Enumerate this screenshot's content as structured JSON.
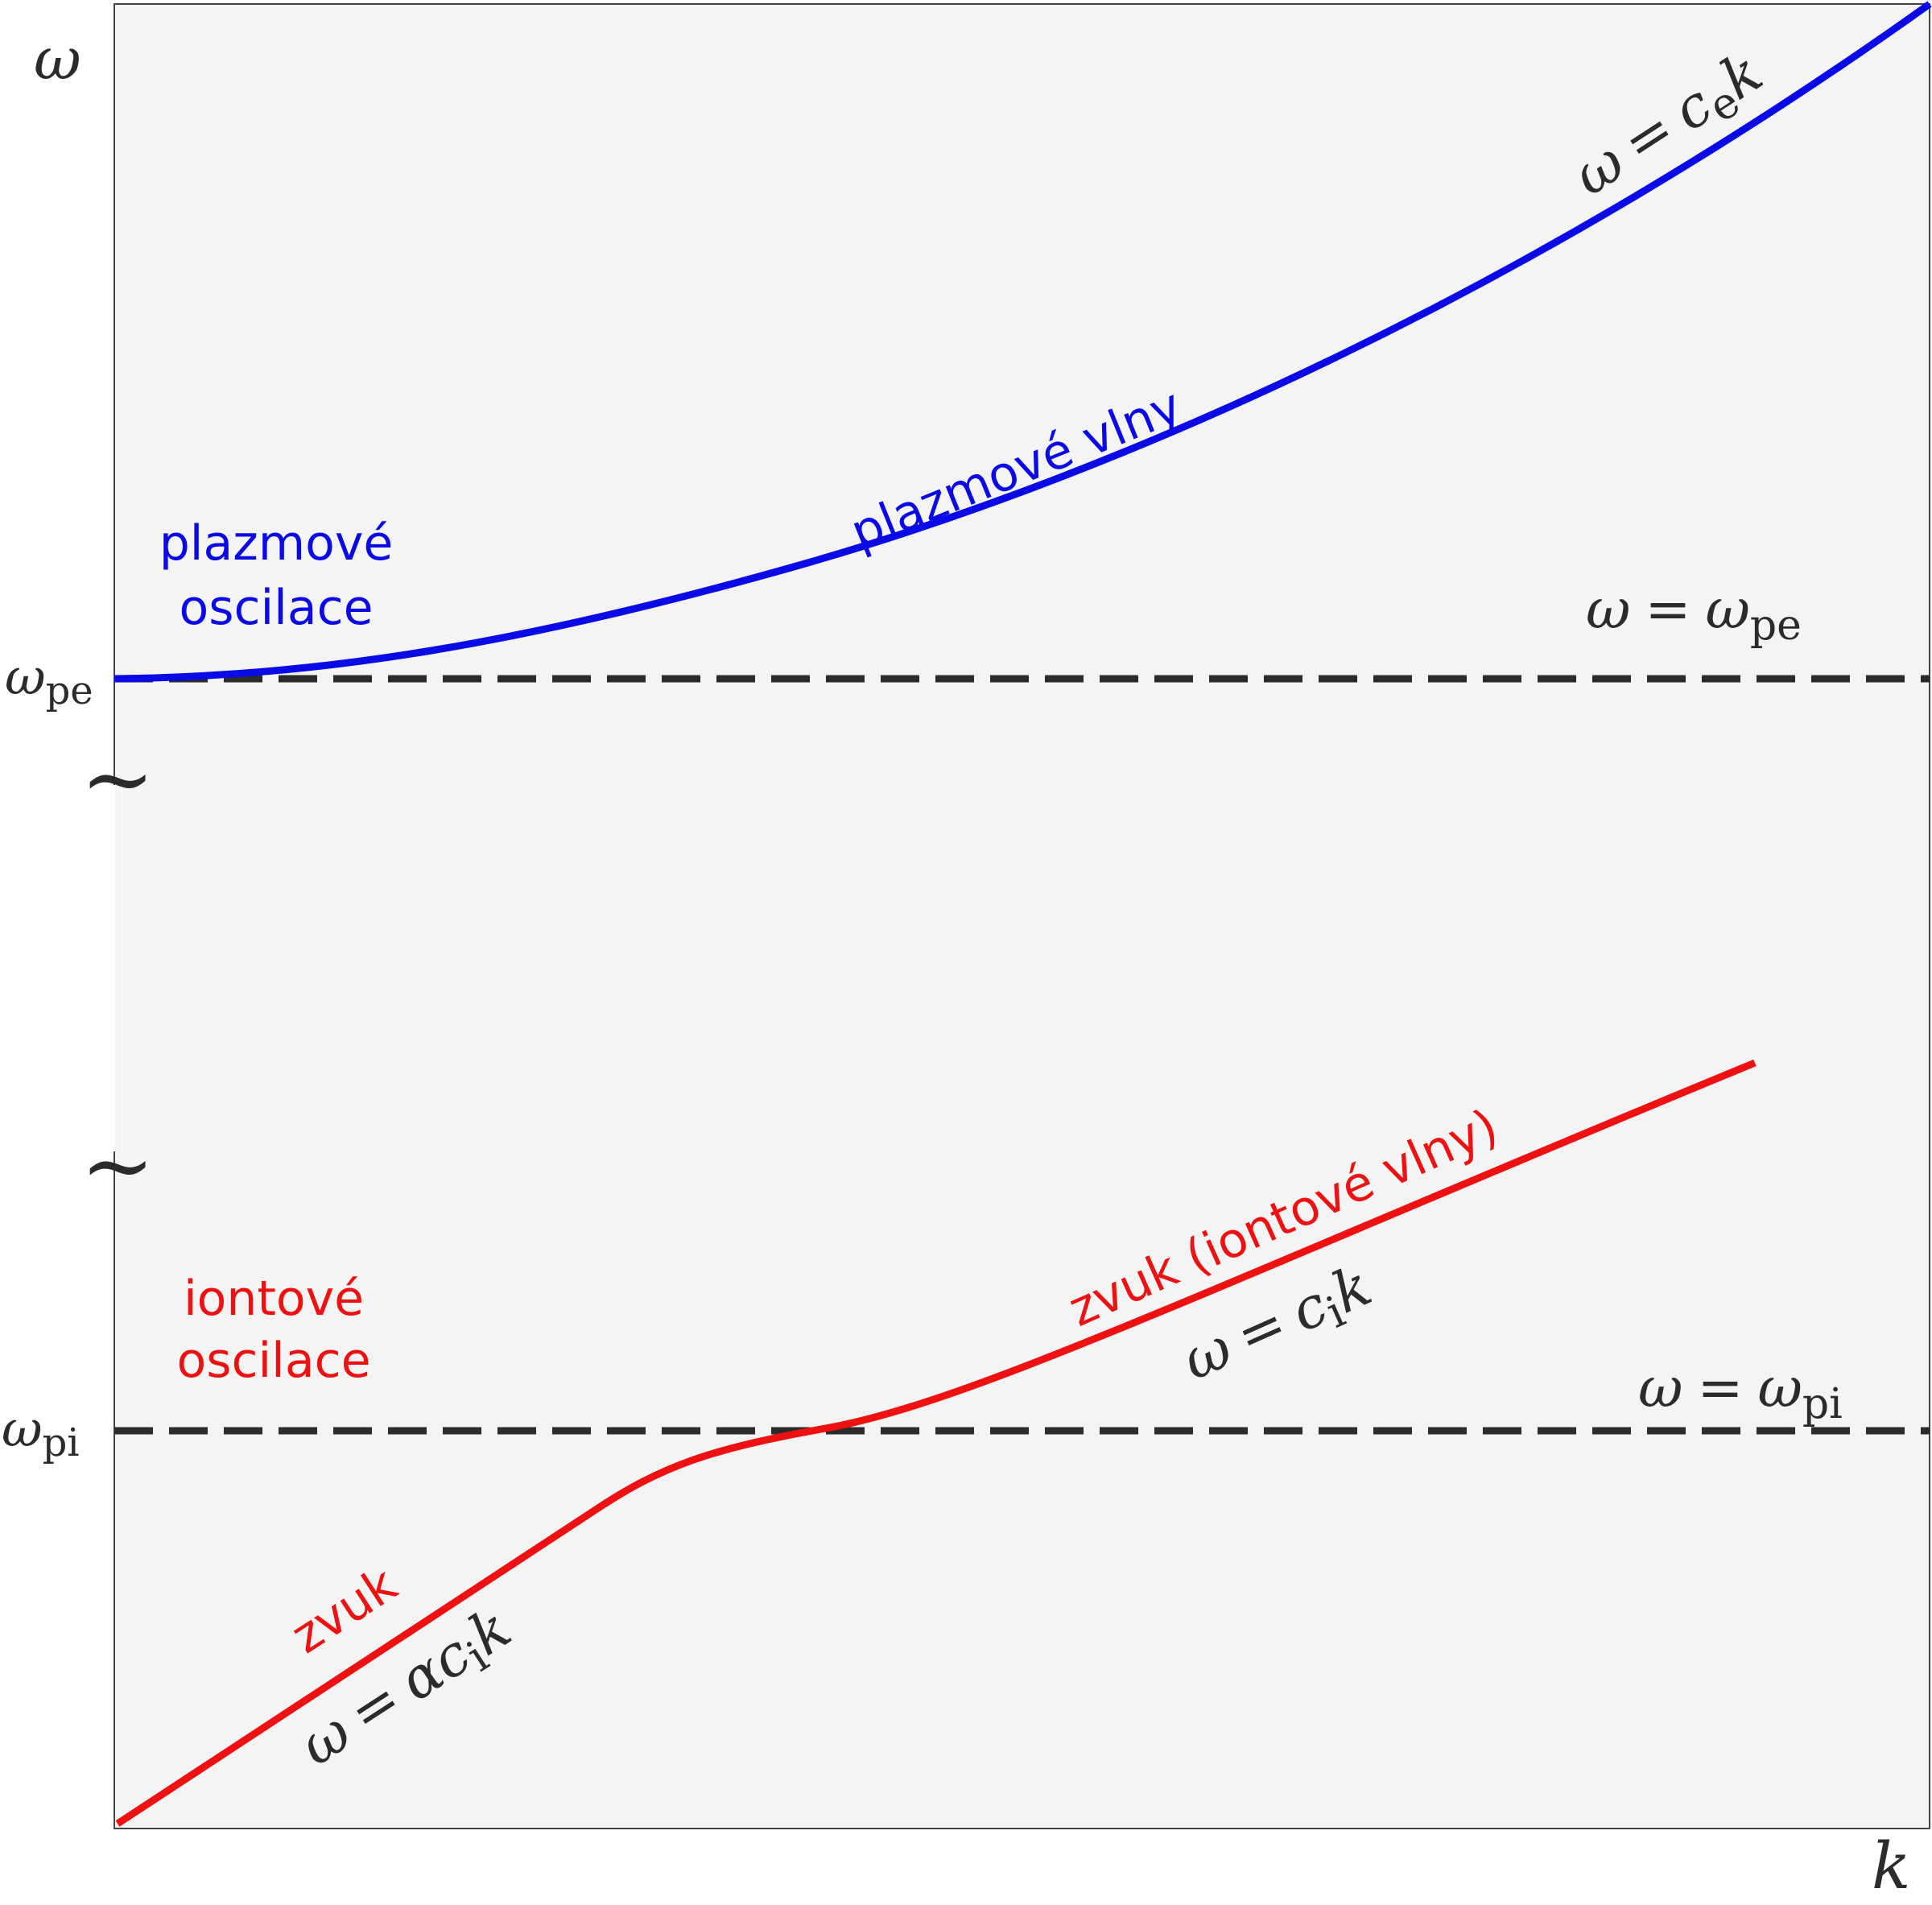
{
  "axes": {
    "y_label": "ω",
    "x_label": "k"
  },
  "levels": {
    "omega_pe": {
      "symbol": "ω",
      "sub": "pe",
      "eq_left": "ω",
      "eq_sign": "=",
      "eq_right": "ω",
      "eq_sub": "pe"
    },
    "omega_pi": {
      "symbol": "ω",
      "sub": "pi",
      "eq_left": "ω",
      "eq_sign": "=",
      "eq_right": "ω",
      "eq_sub": "pi"
    }
  },
  "axis_break_symbol": "~",
  "electron_branch": {
    "color": "#0a0ae6",
    "region_label_line1": "plazmové",
    "region_label_line2": "oscilace",
    "curve_label": "plazmové vlny",
    "asymptote": {
      "lhs": "ω",
      "eq": "=",
      "c": "c",
      "sub": "e",
      "k": "k"
    }
  },
  "ion_branch": {
    "color": "#ee1111",
    "region_label_line1": "iontové",
    "region_label_line2": "oscilace",
    "curve_label_upper": "zvuk (iontové vlny)",
    "curve_label_lower": "zvuk",
    "upper_relation": {
      "lhs": "ω",
      "eq": "=",
      "c": "c",
      "sub": "i",
      "k": "k"
    },
    "lower_relation": {
      "lhs": "ω",
      "eq": "=",
      "alpha": "α",
      "c": "c",
      "sub": "i",
      "k": "k"
    }
  },
  "colors": {
    "plot_bg": "#f4f4f4",
    "dashed": "#2b2b2b",
    "text": "#2b2b2b"
  }
}
